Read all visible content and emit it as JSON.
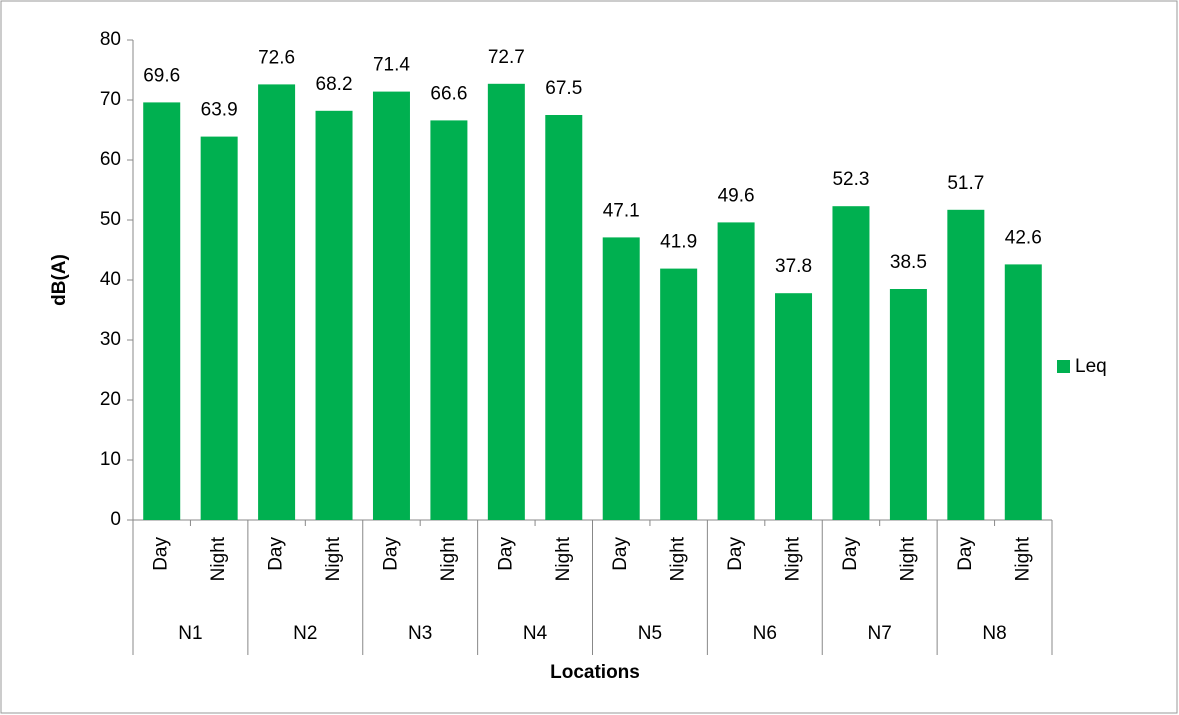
{
  "chart_data": {
    "type": "bar",
    "xlabel": "Locations",
    "ylabel": "dB(A)",
    "categories": [
      "Day",
      "Night",
      "Day",
      "Night",
      "Day",
      "Night",
      "Day",
      "Night",
      "Day",
      "Night",
      "Day",
      "Night",
      "Day",
      "Night",
      "Day",
      "Night"
    ],
    "groups": [
      "N1",
      "N2",
      "N3",
      "N4",
      "N5",
      "N6",
      "N7",
      "N8"
    ],
    "series": [
      {
        "name": "Leq",
        "color": "#00b050",
        "values": [
          69.6,
          63.9,
          72.6,
          68.2,
          71.4,
          66.6,
          72.7,
          67.5,
          47.1,
          41.9,
          49.6,
          37.8,
          52.3,
          38.5,
          51.7,
          42.6
        ]
      }
    ],
    "ylim": [
      0,
      80
    ],
    "yticks": [
      0,
      10,
      20,
      30,
      40,
      50,
      60,
      70,
      80
    ],
    "grid": false,
    "legend": "right",
    "data_labels": true
  }
}
